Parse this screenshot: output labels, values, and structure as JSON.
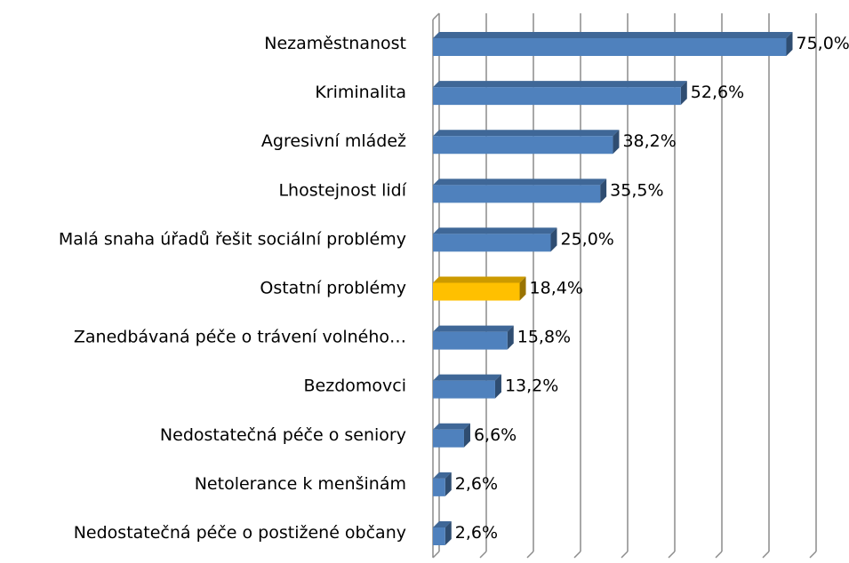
{
  "chart_data": {
    "type": "bar3d-horizontal",
    "categories": [
      "Nezaměstnanost",
      "Kriminalita",
      "Agresivní mládež",
      "Lhostejnost lidí",
      "Malá snaha úřadů řešit sociální problémy",
      "Ostatní problémy",
      "Zanedbávaná péče o trávení volného…",
      "Bezdomovci",
      "Nedostatečná péče o seniory",
      "Netolerance k menšinám",
      "Nedostatečná péče o postižené občany"
    ],
    "values": [
      75.0,
      52.6,
      38.2,
      35.5,
      25.0,
      18.4,
      15.8,
      13.2,
      6.6,
      2.6,
      2.6
    ],
    "value_labels": [
      "75,0%",
      "52,6%",
      "38,2%",
      "35,5%",
      "25,0%",
      "18,4%",
      "15,8%",
      "13,2%",
      "6,6%",
      "2,6%",
      "2,6%"
    ],
    "colors": [
      "#4f81bd",
      "#4f81bd",
      "#4f81bd",
      "#4f81bd",
      "#4f81bd",
      "#ffc000",
      "#4f81bd",
      "#4f81bd",
      "#4f81bd",
      "#4f81bd",
      "#4f81bd"
    ],
    "xlim": [
      0,
      80
    ],
    "xticks": [
      0,
      10,
      20,
      30,
      40,
      50,
      60,
      70,
      80
    ],
    "grid": true
  }
}
